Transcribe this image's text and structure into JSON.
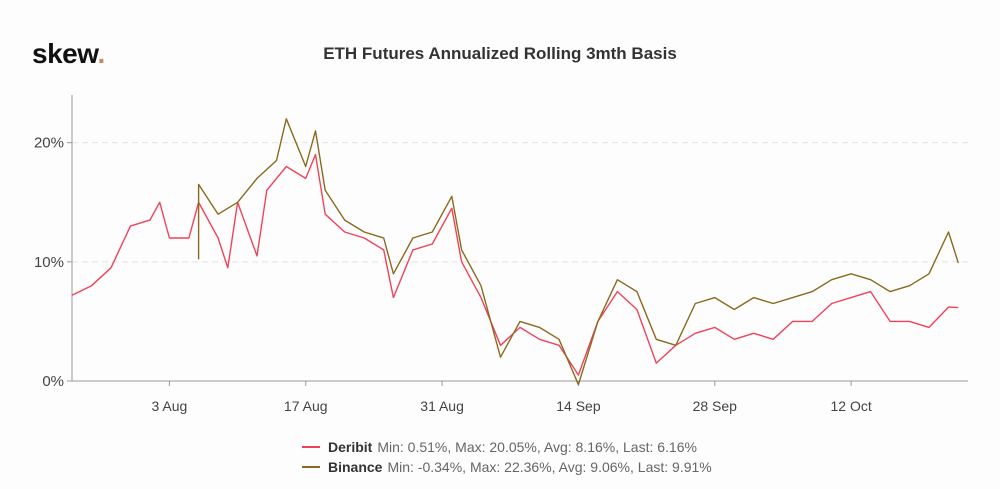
{
  "logo": {
    "text": "skew",
    "dot": "."
  },
  "chart_data": {
    "type": "line",
    "title": "ETH Futures Annualized Rolling 3mth Basis",
    "xlabel": "",
    "ylabel": "",
    "xlim": [
      "Jul 24",
      "Oct 24"
    ],
    "ylim": [
      0,
      24
    ],
    "y_ticks": [
      "0%",
      "10%",
      "20%"
    ],
    "y_tick_values": [
      0,
      10,
      20
    ],
    "x_ticks": [
      "3 Aug",
      "17 Aug",
      "31 Aug",
      "14 Sep",
      "28 Sep",
      "12 Oct"
    ],
    "x_tick_dates": [
      "Aug 3",
      "Aug 17",
      "Aug 31",
      "Sep 14",
      "Sep 28",
      "Oct 12"
    ],
    "grid": true,
    "legend_position": "bottom",
    "series": [
      {
        "name": "Deribit",
        "color": "#f0435a",
        "stats": "Min: 0.51%, Max: 20.05%, Avg: 8.16%, Last: 6.16%",
        "points": [
          [
            "Jul 24",
            7.2
          ],
          [
            "Jul 26",
            8
          ],
          [
            "Jul 28",
            9.5
          ],
          [
            "Jul 30",
            13
          ],
          [
            "Aug 1",
            13.5
          ],
          [
            "Aug 2",
            15
          ],
          [
            "Aug 3",
            12
          ],
          [
            "Aug 5",
            12
          ],
          [
            "Aug 6",
            15
          ],
          [
            "Aug 8",
            12
          ],
          [
            "Aug 9",
            9.5
          ],
          [
            "Aug 10",
            15
          ],
          [
            "Aug 12",
            10.5
          ],
          [
            "Aug 13",
            16
          ],
          [
            "Aug 15",
            18
          ],
          [
            "Aug 17",
            17
          ],
          [
            "Aug 18",
            19
          ],
          [
            "Aug 19",
            14
          ],
          [
            "Aug 21",
            12.5
          ],
          [
            "Aug 23",
            12
          ],
          [
            "Aug 25",
            11
          ],
          [
            "Aug 26",
            7
          ],
          [
            "Aug 28",
            11
          ],
          [
            "Aug 30",
            11.5
          ],
          [
            "Sep 1",
            14.5
          ],
          [
            "Sep 2",
            10
          ],
          [
            "Sep 4",
            7
          ],
          [
            "Sep 6",
            3
          ],
          [
            "Sep 8",
            4.5
          ],
          [
            "Sep 10",
            3.5
          ],
          [
            "Sep 12",
            3
          ],
          [
            "Sep 14",
            0.5
          ],
          [
            "Sep 16",
            5
          ],
          [
            "Sep 18",
            7.5
          ],
          [
            "Sep 20",
            6
          ],
          [
            "Sep 22",
            1.5
          ],
          [
            "Sep 24",
            3
          ],
          [
            "Sep 26",
            4
          ],
          [
            "Sep 28",
            4.5
          ],
          [
            "Sep 30",
            3.5
          ],
          [
            "Oct 2",
            4
          ],
          [
            "Oct 4",
            3.5
          ],
          [
            "Oct 6",
            5
          ],
          [
            "Oct 8",
            5
          ],
          [
            "Oct 10",
            6.5
          ],
          [
            "Oct 12",
            7
          ],
          [
            "Oct 14",
            7.5
          ],
          [
            "Oct 16",
            5
          ],
          [
            "Oct 18",
            5
          ],
          [
            "Oct 20",
            4.5
          ],
          [
            "Oct 22",
            6.2
          ],
          [
            "Oct 23",
            6.16
          ]
        ]
      },
      {
        "name": "Binance",
        "color": "#8a6a1e",
        "stats": "Min: -0.34%, Max: 22.36%, Avg: 9.06%, Last: 9.91%",
        "points": [
          [
            "Aug 6",
            10.2
          ],
          [
            "Aug 6",
            16.5
          ],
          [
            "Aug 8",
            14
          ],
          [
            "Aug 10",
            15
          ],
          [
            "Aug 12",
            17
          ],
          [
            "Aug 14",
            18.5
          ],
          [
            "Aug 15",
            22
          ],
          [
            "Aug 17",
            18
          ],
          [
            "Aug 18",
            21
          ],
          [
            "Aug 19",
            16
          ],
          [
            "Aug 21",
            13.5
          ],
          [
            "Aug 23",
            12.5
          ],
          [
            "Aug 25",
            12
          ],
          [
            "Aug 26",
            9
          ],
          [
            "Aug 28",
            12
          ],
          [
            "Aug 30",
            12.5
          ],
          [
            "Sep 1",
            15.5
          ],
          [
            "Sep 2",
            11
          ],
          [
            "Sep 4",
            8
          ],
          [
            "Sep 6",
            2
          ],
          [
            "Sep 8",
            5
          ],
          [
            "Sep 10",
            4.5
          ],
          [
            "Sep 12",
            3.5
          ],
          [
            "Sep 14",
            -0.3
          ],
          [
            "Sep 16",
            5
          ],
          [
            "Sep 18",
            8.5
          ],
          [
            "Sep 20",
            7.5
          ],
          [
            "Sep 22",
            3.5
          ],
          [
            "Sep 24",
            3
          ],
          [
            "Sep 26",
            6.5
          ],
          [
            "Sep 28",
            7
          ],
          [
            "Sep 30",
            6
          ],
          [
            "Oct 2",
            7
          ],
          [
            "Oct 4",
            6.5
          ],
          [
            "Oct 6",
            7
          ],
          [
            "Oct 8",
            7.5
          ],
          [
            "Oct 10",
            8.5
          ],
          [
            "Oct 12",
            9
          ],
          [
            "Oct 14",
            8.5
          ],
          [
            "Oct 16",
            7.5
          ],
          [
            "Oct 18",
            8
          ],
          [
            "Oct 20",
            9
          ],
          [
            "Oct 22",
            12.5
          ],
          [
            "Oct 23",
            9.91
          ]
        ]
      }
    ]
  }
}
